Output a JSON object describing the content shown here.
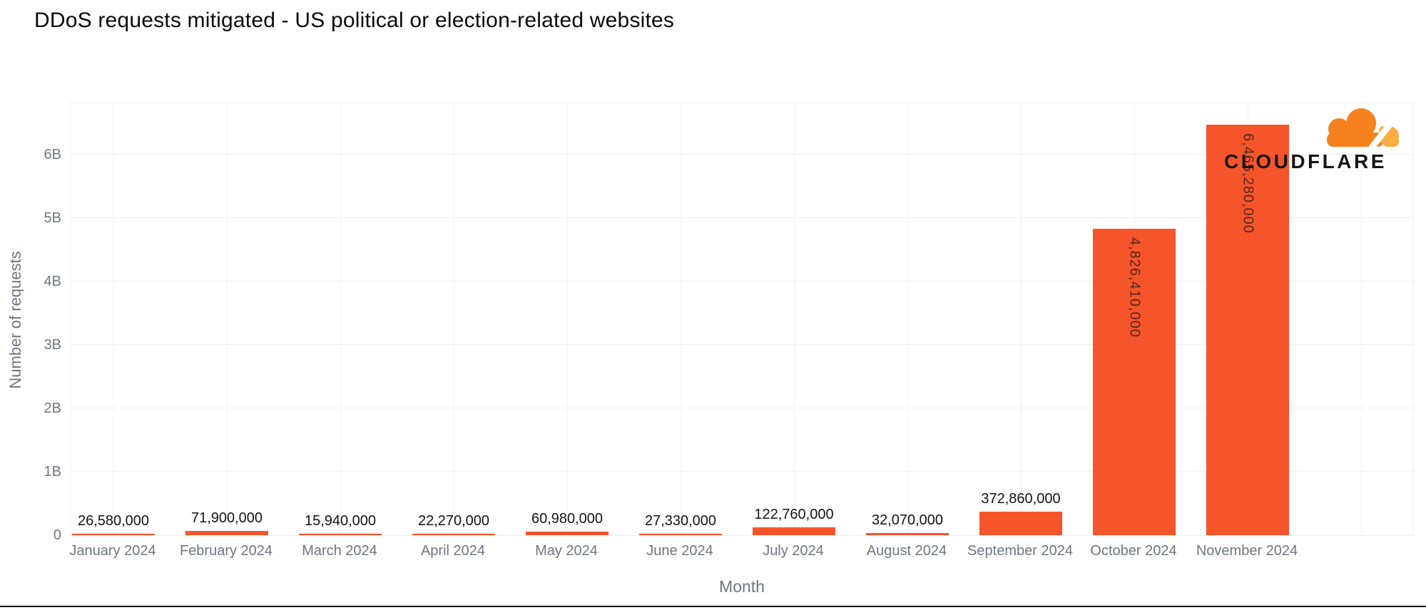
{
  "title": "DDoS requests mitigated - US political or election-related websites",
  "axes": {
    "x_title": "Month",
    "y_title": "Number of requests"
  },
  "logo": {
    "wordmark": "CLOUDFLARE",
    "cloud_orange": "#F6821F",
    "cloud_light_orange": "#FBAD41"
  },
  "colors": {
    "bar": "#F6552B",
    "grid": "#F0F0F2",
    "axis_text": "#6E7680",
    "value_label": "#141414",
    "title_text": "#0B0B0B"
  },
  "chart_data": {
    "type": "bar",
    "title": "DDoS requests mitigated - US political or election-related websites",
    "xlabel": "Month",
    "ylabel": "Number of requests",
    "grid": true,
    "legend": "none",
    "ylim": [
      0,
      6830000000
    ],
    "y_ticks": [
      {
        "label": "0",
        "value": 0
      },
      {
        "label": "1B",
        "value": 1000000000
      },
      {
        "label": "2B",
        "value": 2000000000
      },
      {
        "label": "3B",
        "value": 3000000000
      },
      {
        "label": "4B",
        "value": 4000000000
      },
      {
        "label": "5B",
        "value": 5000000000
      },
      {
        "label": "6B",
        "value": 6000000000
      }
    ],
    "categories": [
      "January 2024",
      "February 2024",
      "March 2024",
      "April 2024",
      "May 2024",
      "June 2024",
      "July 2024",
      "August 2024",
      "September 2024",
      "October 2024",
      "November 2024"
    ],
    "values": [
      26580000,
      71900000,
      15940000,
      22270000,
      60980000,
      27330000,
      122760000,
      32070000,
      372860000,
      4826410000,
      6465280000
    ],
    "value_labels": [
      "26,580,000",
      "71,900,000",
      "15,940,000",
      "22,270,000",
      "60,980,000",
      "27,330,000",
      "122,760,000",
      "32,070,000",
      "372,860,000",
      "4,826,410,000",
      "6,465,280,000"
    ],
    "label_style": [
      "above",
      "above",
      "above",
      "above",
      "above",
      "above",
      "above",
      "above",
      "above",
      "rotated",
      "rotated"
    ]
  }
}
